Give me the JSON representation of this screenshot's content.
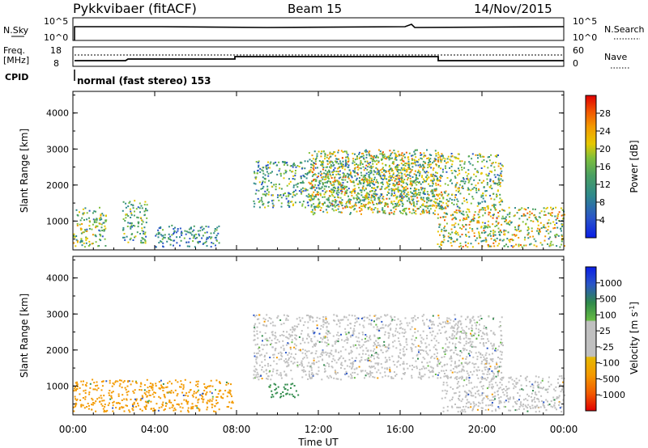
{
  "header": {
    "station": "Pykkvibaer (fitACF)",
    "beam": "Beam 15",
    "date": "14/Nov/2015"
  },
  "top_panels": {
    "nsky_label": "N.Sky",
    "nsky_ticks": [
      "10^5",
      "10^0"
    ],
    "nsearch_label": "N.Search",
    "nsearch_ticks": [
      "10^5",
      "10^0"
    ],
    "freq_label": "Freq.",
    "freq_unit": "[MHz]",
    "freq_ticks": [
      "18",
      "8"
    ],
    "nave_label": "Nave",
    "nave_ticks": [
      "60",
      "0"
    ],
    "cpid_label": "CPID",
    "cpid_text": "normal (fast stereo) 153"
  },
  "chart_data": [
    {
      "type": "heatmap",
      "name": "power",
      "ylabel": "Slant Range [km]",
      "ylim": [
        200,
        4600
      ],
      "yticks": [
        "4000",
        "3000",
        "2000",
        "1000"
      ],
      "xlim": [
        0,
        24
      ],
      "colorbar": {
        "label": "Power [dB]",
        "ticks": [
          "28",
          "24",
          "20",
          "16",
          "12",
          "8",
          "4"
        ],
        "colors": [
          "#0a1fe6",
          "#2a55c8",
          "#2f8a8a",
          "#4aa061",
          "#7fc03b",
          "#e6c800",
          "#f39a00",
          "#f25a00",
          "#e00000"
        ]
      },
      "regions": [
        {
          "t": [
            0.0,
            1.6
          ],
          "r": [
            300,
            1400
          ],
          "intensity": 0.6
        },
        {
          "t": [
            2.4,
            3.6
          ],
          "r": [
            400,
            1600
          ],
          "intensity": 0.5
        },
        {
          "t": [
            4.0,
            7.2
          ],
          "r": [
            300,
            900
          ],
          "intensity": 0.4
        },
        {
          "t": [
            8.8,
            14.0
          ],
          "r": [
            1400,
            2700
          ],
          "intensity": 0.5
        },
        {
          "t": [
            11.5,
            18.0
          ],
          "r": [
            1200,
            3000
          ],
          "intensity": 0.7
        },
        {
          "t": [
            14.0,
            21.0
          ],
          "r": [
            1400,
            2900
          ],
          "intensity": 0.6
        },
        {
          "t": [
            17.8,
            24.0
          ],
          "r": [
            300,
            1400
          ],
          "intensity": 0.7
        }
      ]
    },
    {
      "type": "heatmap",
      "name": "velocity",
      "ylabel": "Slant Range [km]",
      "ylim": [
        200,
        4600
      ],
      "yticks": [
        "4000",
        "3000",
        "2000",
        "1000"
      ],
      "xlim": [
        0,
        24
      ],
      "xticks": [
        "00:00",
        "04:00",
        "08:00",
        "12:00",
        "16:00",
        "20:00",
        "00:00"
      ],
      "xlabel": "Time UT",
      "colorbar": {
        "label": "Velocity [m s^-1]",
        "ticks": [
          "1000",
          "500",
          "100",
          "25",
          "-25",
          "-100",
          "-500",
          "-1000"
        ],
        "colors": [
          "#e00000",
          "#f25a00",
          "#f39a00",
          "#e6b800",
          "#c0c0c0",
          "#c0c0c0",
          "#66bb44",
          "#2f8a4a",
          "#2a55c8",
          "#0a1fe6"
        ]
      },
      "regions": [
        {
          "t": [
            0.0,
            7.8
          ],
          "r": [
            300,
            1200
          ],
          "color": "#f39a00"
        },
        {
          "t": [
            8.8,
            21.0
          ],
          "r": [
            1200,
            3000
          ],
          "color": "#c0c0c0"
        },
        {
          "t": [
            9.5,
            11.0
          ],
          "r": [
            700,
            1100
          ],
          "color": "#2f8a4a"
        },
        {
          "t": [
            18.0,
            24.0
          ],
          "r": [
            300,
            1300
          ],
          "color": "#c0c0c0"
        }
      ]
    }
  ]
}
